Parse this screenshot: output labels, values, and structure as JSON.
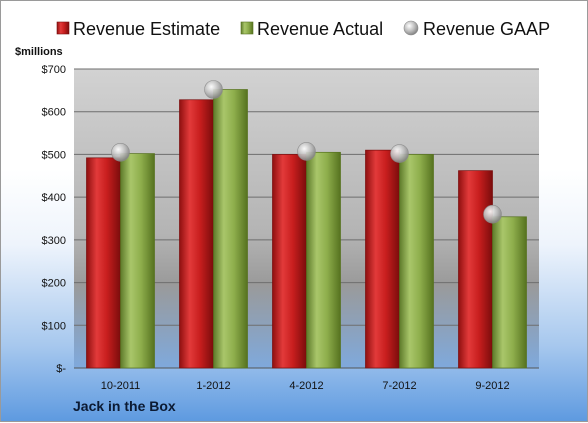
{
  "chart_data": {
    "type": "bar",
    "title": "",
    "company": "Jack in the Box",
    "ylabel": "$millions",
    "xlabel": "",
    "categories": [
      "10-2011",
      "1-2012",
      "4-2012",
      "7-2012",
      "9-2012"
    ],
    "series": [
      {
        "name": "Revenue Estimate",
        "kind": "bar",
        "color": "#d42a2a",
        "values": [
          492,
          628,
          500,
          510,
          462
        ]
      },
      {
        "name": "Revenue Actual",
        "kind": "bar",
        "color": "#9bba59",
        "values": [
          502,
          652,
          505,
          500,
          354
        ]
      },
      {
        "name": "Revenue GAAP",
        "kind": "marker",
        "color": "#b9b9b9",
        "values": [
          505,
          652,
          507,
          502,
          360
        ]
      }
    ],
    "ylim": [
      0,
      700
    ],
    "yticks": [
      0,
      100,
      200,
      300,
      400,
      500,
      600,
      700
    ],
    "ytick_labels": [
      "$-",
      "$100",
      "$200",
      "$300",
      "$400",
      "$500",
      "$600",
      "$700"
    ],
    "grid": true,
    "legend": "top"
  }
}
